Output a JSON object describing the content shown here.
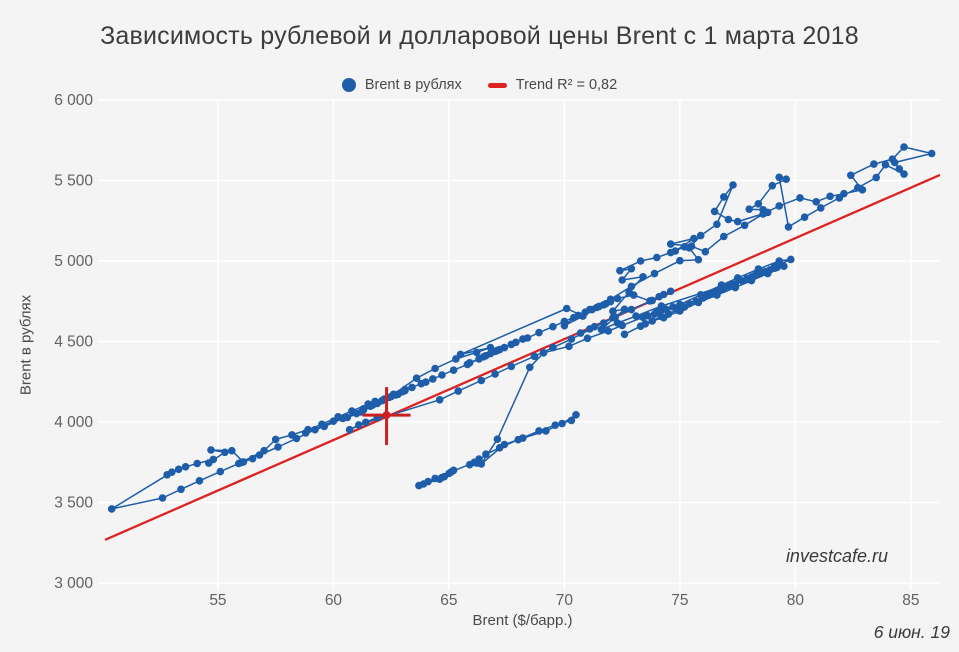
{
  "title": "Зависимость рублевой и долларовой цены Brent с 1 марта 2018",
  "legend": {
    "series_label": "Brent в рублях",
    "trend_label": "Trend R² = 0,82"
  },
  "watermark": "investcafe.ru",
  "date_note": "6 июн. 19",
  "colors": {
    "background": "#f4f4f4",
    "grid": "#ffffff",
    "points": "#1d5da9",
    "trend": "#dd2222",
    "crosshair": "#cc1f1f",
    "title_text": "#3c3c3c",
    "tick_text": "#616161"
  },
  "chart_data": {
    "type": "scatter",
    "title": "Зависимость рублевой и долларовой цены Brent с 1 марта 2018",
    "xlabel": "Brent ($/барр.)",
    "ylabel": "Brent в рублях",
    "xlim": [
      50.11,
      86.26
    ],
    "ylim": [
      3000,
      6000
    ],
    "grid": true,
    "legend_position": "top-center",
    "x_ticks": [
      55,
      60,
      65,
      70,
      75,
      80,
      85
    ],
    "y_ticks": [
      3000,
      3500,
      4000,
      4500,
      5000,
      5500,
      6000
    ],
    "y_tick_labels": [
      "3 000",
      "3 500",
      "4 000",
      "4 500",
      "5 000",
      "5 500",
      "6 000"
    ],
    "x_tick_labels": [
      "55",
      "60",
      "65",
      "70",
      "75",
      "80",
      "85"
    ],
    "trend": {
      "name": "Trend R² = 0,82",
      "r2": 0.82,
      "slope": 62.7,
      "intercept": 126,
      "x_range": [
        50.11,
        86.26
      ]
    },
    "latest_point": {
      "x": 62.3,
      "y": 4043,
      "marker": "red-crosshair"
    },
    "series": [
      {
        "name": "Brent в рублях",
        "mode": "lines+markers",
        "points": [
          [
            63.9,
            3615
          ],
          [
            64.4,
            3650
          ],
          [
            63.7,
            3605
          ],
          [
            64.6,
            3645
          ],
          [
            65.0,
            3680
          ],
          [
            65.2,
            3700
          ],
          [
            64.8,
            3660
          ],
          [
            64.1,
            3630
          ],
          [
            64.7,
            3655
          ],
          [
            65.1,
            3690
          ],
          [
            66.1,
            3750
          ],
          [
            66.3,
            3770
          ],
          [
            65.9,
            3735
          ],
          [
            66.2,
            3745
          ],
          [
            66.6,
            3800
          ],
          [
            67.2,
            3840
          ],
          [
            68.0,
            3890
          ],
          [
            68.9,
            3945
          ],
          [
            69.6,
            3980
          ],
          [
            70.3,
            4010
          ],
          [
            70.5,
            4045
          ],
          [
            69.9,
            3990
          ],
          [
            69.2,
            3945
          ],
          [
            68.2,
            3900
          ],
          [
            67.4,
            3860
          ],
          [
            66.4,
            3740
          ],
          [
            67.1,
            3893
          ],
          [
            68.5,
            4340
          ],
          [
            69.1,
            4430
          ],
          [
            70.2,
            4470
          ],
          [
            71.0,
            4520
          ],
          [
            71.9,
            4565
          ],
          [
            72.5,
            4600
          ],
          [
            73.4,
            4650
          ],
          [
            74.0,
            4685
          ],
          [
            73.6,
            4660
          ],
          [
            74.2,
            4695
          ],
          [
            74.7,
            4715
          ],
          [
            73.9,
            4670
          ],
          [
            74.4,
            4700
          ],
          [
            75.0,
            4730
          ],
          [
            75.9,
            4790
          ],
          [
            76.8,
            4850
          ],
          [
            77.5,
            4895
          ],
          [
            78.4,
            4950
          ],
          [
            79.3,
            5000
          ],
          [
            79.8,
            5010
          ],
          [
            79.1,
            4965
          ],
          [
            78.3,
            4915
          ],
          [
            79.4,
            4975
          ],
          [
            78.9,
            4945
          ],
          [
            78.1,
            4900
          ],
          [
            77.3,
            4855
          ],
          [
            76.5,
            4805
          ],
          [
            75.4,
            4735
          ],
          [
            76.2,
            4785
          ],
          [
            76.9,
            4825
          ],
          [
            77.7,
            4875
          ],
          [
            78.6,
            4930
          ],
          [
            79.2,
            4960
          ],
          [
            78.7,
            4935
          ],
          [
            77.9,
            4890
          ],
          [
            77.1,
            4845
          ],
          [
            76.3,
            4795
          ],
          [
            75.2,
            4715
          ],
          [
            74.5,
            4670
          ],
          [
            73.3,
            4595
          ],
          [
            72.6,
            4545
          ],
          [
            73.5,
            4610
          ],
          [
            74.2,
            4655
          ],
          [
            74.9,
            4695
          ],
          [
            75.7,
            4750
          ],
          [
            76.4,
            4795
          ],
          [
            77.2,
            4845
          ],
          [
            77.9,
            4885
          ],
          [
            78.5,
            4925
          ],
          [
            79.1,
            4955
          ],
          [
            78.2,
            4905
          ],
          [
            77.4,
            4855
          ],
          [
            76.7,
            4815
          ],
          [
            76.0,
            4770
          ],
          [
            75.1,
            4710
          ],
          [
            74.5,
            4672
          ],
          [
            73.8,
            4628
          ],
          [
            74.3,
            4648
          ],
          [
            75.0,
            4690
          ],
          [
            75.8,
            4742
          ],
          [
            76.6,
            4788
          ],
          [
            77.4,
            4835
          ],
          [
            78.1,
            4878
          ],
          [
            78.8,
            4922
          ],
          [
            79.5,
            4968
          ],
          [
            74.2,
            4720
          ],
          [
            73.1,
            4658
          ],
          [
            72.3,
            4615
          ],
          [
            71.6,
            4575
          ],
          [
            72.6,
            4700
          ],
          [
            72.1,
            4688
          ],
          [
            72.8,
            4808
          ],
          [
            73.4,
            4902
          ],
          [
            72.5,
            4882
          ],
          [
            72.9,
            4952
          ],
          [
            72.4,
            4940
          ],
          [
            73.3,
            5000
          ],
          [
            74.0,
            5022
          ],
          [
            74.6,
            5052
          ],
          [
            75.2,
            5088
          ],
          [
            74.8,
            5062
          ],
          [
            75.6,
            5140
          ],
          [
            74.6,
            5105
          ],
          [
            75.5,
            5092
          ],
          [
            76.1,
            5058
          ],
          [
            76.9,
            5152
          ],
          [
            77.8,
            5222
          ],
          [
            78.6,
            5292
          ],
          [
            79.3,
            5342
          ],
          [
            80.2,
            5392
          ],
          [
            80.9,
            5368
          ],
          [
            81.5,
            5402
          ],
          [
            82.1,
            5418
          ],
          [
            82.9,
            5442
          ],
          [
            82.4,
            5532
          ],
          [
            83.4,
            5602
          ],
          [
            84.2,
            5632
          ],
          [
            84.7,
            5708
          ],
          [
            85.9,
            5668
          ],
          [
            84.3,
            5612
          ],
          [
            84.5,
            5572
          ],
          [
            84.7,
            5540
          ],
          [
            83.9,
            5598
          ],
          [
            83.5,
            5518
          ],
          [
            82.7,
            5455
          ],
          [
            81.9,
            5392
          ],
          [
            81.1,
            5330
          ],
          [
            80.4,
            5272
          ],
          [
            79.7,
            5212
          ],
          [
            79.3,
            5520
          ],
          [
            79.6,
            5508
          ],
          [
            79.0,
            5468
          ],
          [
            78.4,
            5355
          ],
          [
            78.0,
            5322
          ],
          [
            78.6,
            5318
          ],
          [
            78.8,
            5302
          ],
          [
            77.5,
            5245
          ],
          [
            77.1,
            5258
          ],
          [
            76.5,
            5308
          ],
          [
            76.9,
            5398
          ],
          [
            77.3,
            5472
          ],
          [
            76.6,
            5228
          ],
          [
            75.9,
            5158
          ],
          [
            75.4,
            5082
          ],
          [
            75.8,
            5008
          ],
          [
            75.0,
            5002
          ],
          [
            73.9,
            4922
          ],
          [
            72.9,
            4842
          ],
          [
            72.0,
            4762
          ],
          [
            71.1,
            4698
          ],
          [
            70.4,
            4648
          ],
          [
            70.0,
            4598
          ],
          [
            70.8,
            4658
          ],
          [
            70.1,
            4705
          ],
          [
            65.5,
            4420
          ],
          [
            66.8,
            4462
          ],
          [
            66.2,
            4432
          ],
          [
            65.3,
            4392
          ],
          [
            64.4,
            4332
          ],
          [
            63.6,
            4272
          ],
          [
            62.6,
            4172
          ],
          [
            63.1,
            4202
          ],
          [
            62.2,
            4142
          ],
          [
            61.3,
            4082
          ],
          [
            60.4,
            4022
          ],
          [
            59.6,
            3972
          ],
          [
            58.8,
            3932
          ],
          [
            60.0,
            4005
          ],
          [
            59.2,
            3952
          ],
          [
            58.4,
            3898
          ],
          [
            57.6,
            3845
          ],
          [
            56.8,
            3795
          ],
          [
            56.0,
            3748
          ],
          [
            55.1,
            3692
          ],
          [
            54.2,
            3635
          ],
          [
            53.4,
            3582
          ],
          [
            52.6,
            3528
          ],
          [
            50.4,
            3460
          ],
          [
            53.0,
            3688
          ],
          [
            53.3,
            3706
          ],
          [
            52.8,
            3672
          ],
          [
            53.6,
            3722
          ],
          [
            54.1,
            3742
          ],
          [
            54.8,
            3768
          ],
          [
            54.6,
            3745
          ],
          [
            55.3,
            3812
          ],
          [
            54.7,
            3826
          ],
          [
            55.6,
            3822
          ],
          [
            56.1,
            3752
          ],
          [
            56.5,
            3772
          ],
          [
            55.9,
            3742
          ],
          [
            57.0,
            3822
          ],
          [
            57.5,
            3892
          ],
          [
            58.2,
            3920
          ],
          [
            58.9,
            3952
          ],
          [
            59.5,
            3986
          ],
          [
            60.2,
            4032
          ],
          [
            60.8,
            4068
          ],
          [
            61.5,
            4112
          ],
          [
            61.8,
            4128
          ],
          [
            62.4,
            4152
          ],
          [
            61.9,
            4118
          ],
          [
            61.2,
            4062
          ],
          [
            60.6,
            4028
          ],
          [
            61.0,
            4052
          ],
          [
            61.6,
            4098
          ],
          [
            62.1,
            4132
          ],
          [
            62.7,
            4168
          ],
          [
            63.1,
            4195
          ],
          [
            62.8,
            4172
          ],
          [
            62.2,
            4138
          ],
          [
            61.7,
            4105
          ],
          [
            61.3,
            4075
          ],
          [
            61.9,
            4115
          ],
          [
            62.5,
            4158
          ],
          [
            63.0,
            4188
          ],
          [
            63.4,
            4215
          ],
          [
            63.8,
            4238
          ],
          [
            64.3,
            4268
          ],
          [
            64.0,
            4248
          ],
          [
            64.7,
            4292
          ],
          [
            65.2,
            4322
          ],
          [
            65.8,
            4358
          ],
          [
            66.3,
            4392
          ],
          [
            65.9,
            4368
          ],
          [
            66.6,
            4412
          ],
          [
            67.1,
            4445
          ],
          [
            66.8,
            4425
          ],
          [
            67.4,
            4462
          ],
          [
            67.0,
            4438
          ],
          [
            66.5,
            4405
          ],
          [
            67.2,
            4450
          ],
          [
            67.7,
            4482
          ],
          [
            68.2,
            4515
          ],
          [
            67.9,
            4495
          ],
          [
            68.4,
            4522
          ],
          [
            68.9,
            4555
          ],
          [
            69.5,
            4592
          ],
          [
            70.0,
            4625
          ],
          [
            70.6,
            4662
          ],
          [
            71.2,
            4698
          ],
          [
            71.7,
            4728
          ],
          [
            71.4,
            4712
          ],
          [
            72.0,
            4748
          ],
          [
            71.8,
            4735
          ],
          [
            70.9,
            4682
          ],
          [
            71.5,
            4718
          ],
          [
            72.3,
            4768
          ],
          [
            73.0,
            4788
          ],
          [
            73.7,
            4752
          ],
          [
            74.3,
            4792
          ],
          [
            74.6,
            4812
          ],
          [
            74.1,
            4778
          ],
          [
            73.8,
            4755
          ],
          [
            72.9,
            4698
          ],
          [
            72.2,
            4652
          ],
          [
            71.3,
            4592
          ],
          [
            70.7,
            4552
          ],
          [
            71.1,
            4578
          ],
          [
            71.7,
            4615
          ],
          [
            72.1,
            4648
          ],
          [
            70.3,
            4515
          ],
          [
            69.5,
            4462
          ],
          [
            68.7,
            4408
          ],
          [
            67.7,
            4345
          ],
          [
            67.0,
            4298
          ],
          [
            66.4,
            4258
          ],
          [
            65.4,
            4192
          ],
          [
            64.6,
            4138
          ],
          [
            61.1,
            3982
          ],
          [
            60.7,
            3952
          ],
          [
            61.9,
            4028
          ],
          [
            61.4,
            3998
          ],
          [
            62.3,
            4043
          ]
        ]
      }
    ]
  }
}
